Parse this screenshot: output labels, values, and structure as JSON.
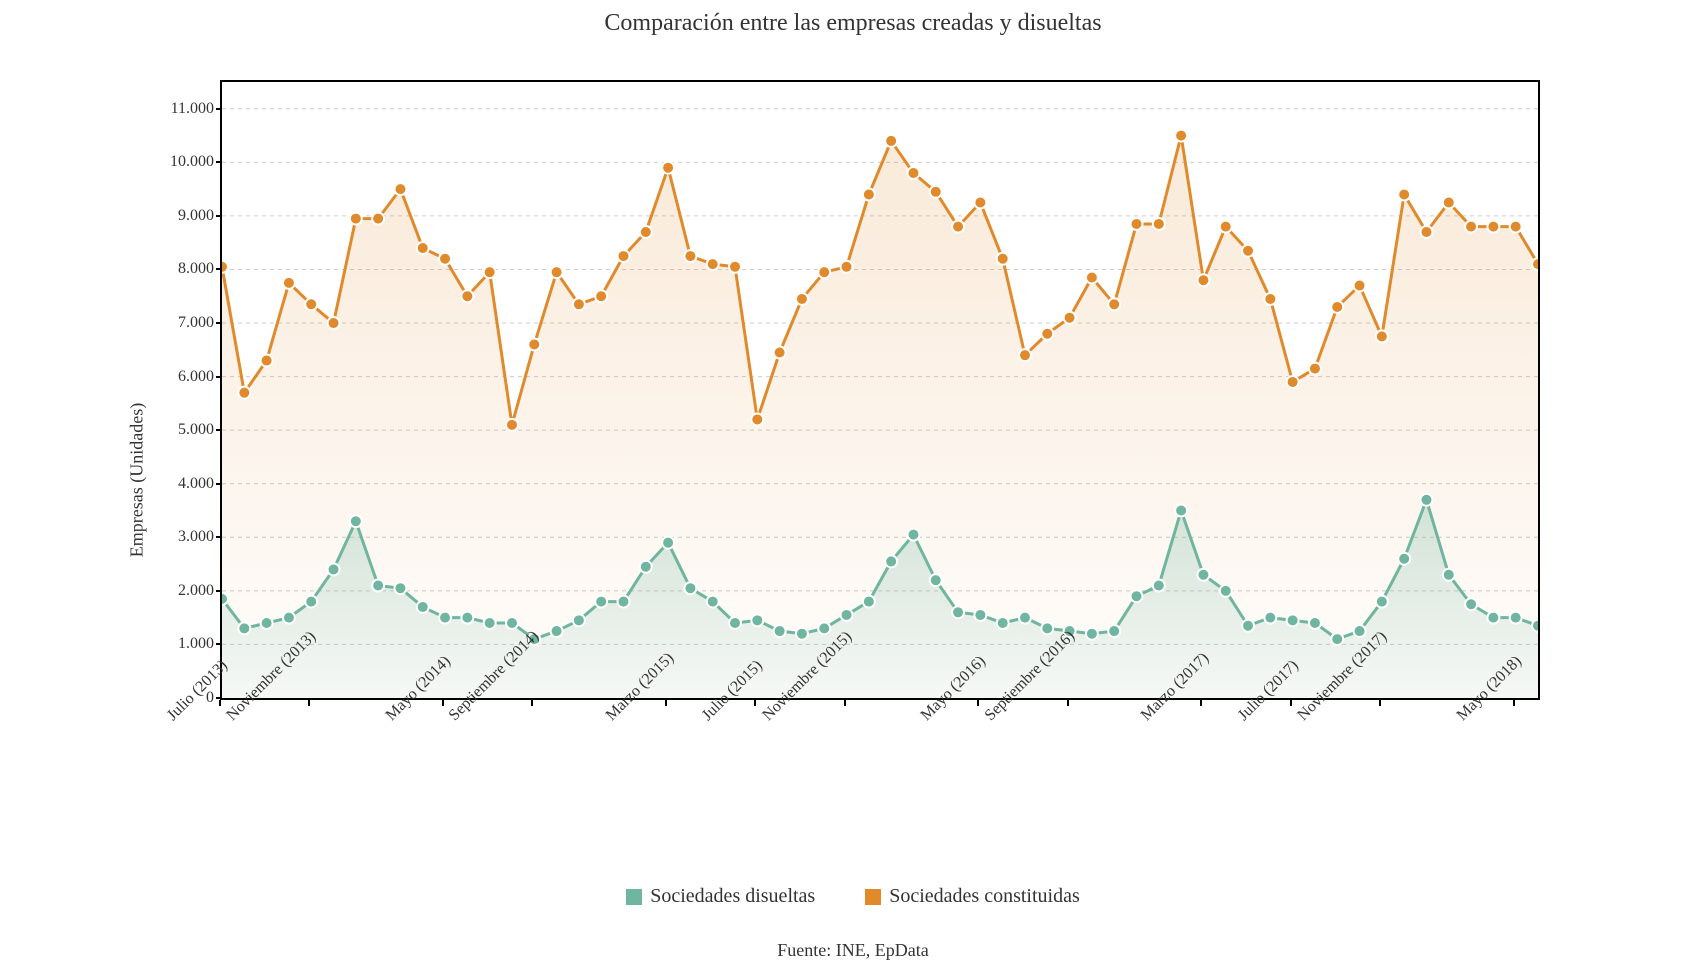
{
  "chart": {
    "type": "line-area",
    "title": "Comparación entre las empresas creadas y disueltas",
    "title_fontsize": 24,
    "ylabel": "Empresas (Unidades)",
    "label_fontsize": 18,
    "source": "Fuente: INE, EpData",
    "background_color": "#ffffff",
    "plot_border_color": "#000000",
    "grid_color": "#cccccc",
    "grid_dash": "4 4",
    "ylim": [
      0,
      11500
    ],
    "yticks": [
      0,
      1000,
      2000,
      3000,
      4000,
      5000,
      6000,
      7000,
      8000,
      9000,
      10000,
      11000
    ],
    "ytick_labels": [
      "0",
      "1.000",
      "2.000",
      "3.000",
      "4.000",
      "5.000",
      "6.000",
      "7.000",
      "8.000",
      "9.000",
      "10.000",
      "11.000"
    ],
    "xlabels": {
      "count": 60,
      "shown": [
        {
          "i": 0,
          "text": "Julio (2013)"
        },
        {
          "i": 4,
          "text": "Noviembre (2013)"
        },
        {
          "i": 10,
          "text": "Mayo (2014)"
        },
        {
          "i": 14,
          "text": "Septiembre (2014)"
        },
        {
          "i": 20,
          "text": "Marzo (2015)"
        },
        {
          "i": 24,
          "text": "Julio (2015)"
        },
        {
          "i": 28,
          "text": "Noviembre (2015)"
        },
        {
          "i": 34,
          "text": "Mayo (2016)"
        },
        {
          "i": 38,
          "text": "Septiembre (2016)"
        },
        {
          "i": 44,
          "text": "Marzo (2017)"
        },
        {
          "i": 48,
          "text": "Julio (2017)"
        },
        {
          "i": 52,
          "text": "Noviembre (2017)"
        },
        {
          "i": 58,
          "text": "Mayo (2018)"
        }
      ],
      "fontsize": 16,
      "rotation_deg": -45
    },
    "line_width": 3,
    "marker_radius": 6,
    "marker_stroke": "#ffffff",
    "marker_stroke_width": 2,
    "series": [
      {
        "name": "Sociedades constituidas",
        "color": "#e08a2c",
        "fill_gradient_top": "rgba(224,138,44,0.18)",
        "fill_gradient_bottom": "rgba(224,138,44,0.02)",
        "values": [
          8050,
          5700,
          6300,
          7750,
          7350,
          7000,
          8950,
          8950,
          9500,
          8400,
          8200,
          7500,
          7950,
          5100,
          6600,
          7950,
          7350,
          7500,
          8250,
          8700,
          9900,
          8250,
          8100,
          8050,
          5200,
          6450,
          7450,
          7950,
          8050,
          9400,
          10400,
          9800,
          9450,
          8800,
          9250,
          8200,
          6400,
          6800,
          7100,
          7850,
          7350,
          8850,
          8850,
          10500,
          7800,
          8800,
          8350,
          7450,
          5900,
          6150,
          7300,
          7700,
          6750,
          9400,
          8700,
          9250,
          8800,
          8800,
          8800,
          8100
        ]
      },
      {
        "name": "Sociedades disueltas",
        "color": "#6fb59f",
        "fill_gradient_top": "rgba(111,181,159,0.30)",
        "fill_gradient_bottom": "rgba(111,181,159,0.06)",
        "values": [
          1850,
          1300,
          1400,
          1500,
          1800,
          2400,
          3300,
          2100,
          2050,
          1700,
          1500,
          1500,
          1400,
          1400,
          1100,
          1250,
          1450,
          1800,
          1800,
          2450,
          2900,
          2050,
          1800,
          1400,
          1450,
          1250,
          1200,
          1300,
          1550,
          1800,
          2550,
          3050,
          2200,
          1600,
          1550,
          1400,
          1500,
          1300,
          1250,
          1200,
          1250,
          1900,
          2100,
          3500,
          2300,
          2000,
          1350,
          1500,
          1450,
          1400,
          1100,
          1250,
          1800,
          2600,
          3700,
          2300,
          1750,
          1500,
          1500,
          1350
        ]
      }
    ],
    "legend": [
      {
        "label": "Sociedades disueltas",
        "color": "#6fb59f"
      },
      {
        "label": "Sociedades constituidas",
        "color": "#e08a2c"
      }
    ]
  }
}
